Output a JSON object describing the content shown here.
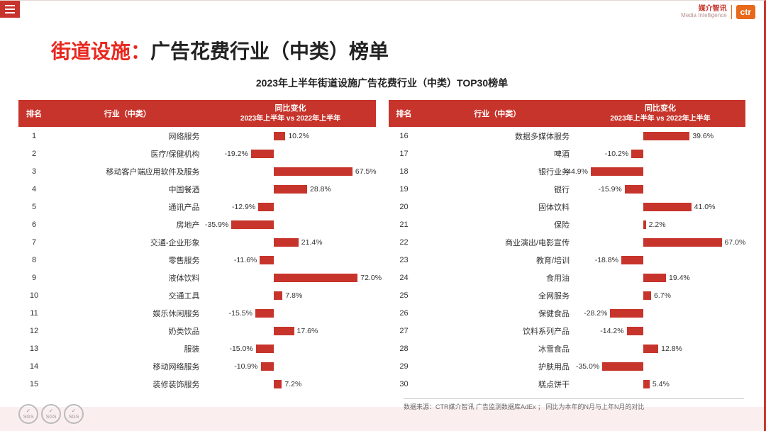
{
  "page": {
    "burger_name": "menu",
    "logo_cn": "媒介智讯",
    "logo_en": "Media Intelligence",
    "logo_box": "ctr",
    "title_prefix": "街道设施：",
    "title_rest": "广告花费行业（中类）榜单",
    "subtitle": "2023年上半年街道设施广告花费行业（中类）TOP30榜单"
  },
  "columns": {
    "rank": "排名",
    "industry": "行业（中类）",
    "change_line1": "同比变化",
    "change_line2": "2023年上半年 vs 2022年上半年"
  },
  "chart": {
    "bar_color": "#c7342b",
    "header_bg": "#c7342b",
    "max_abs": 80,
    "zero_at_pct": 40
  },
  "left": [
    {
      "rank": 1,
      "industry": "网络服务",
      "change": 10.2
    },
    {
      "rank": 2,
      "industry": "医疗/保健机构",
      "change": -19.2
    },
    {
      "rank": 3,
      "industry": "移动客户端应用软件及服务",
      "change": 67.5
    },
    {
      "rank": 4,
      "industry": "中国餐酒",
      "change": 28.8
    },
    {
      "rank": 5,
      "industry": "通讯产品",
      "change": -12.9
    },
    {
      "rank": 6,
      "industry": "房地产",
      "change": -35.9
    },
    {
      "rank": 7,
      "industry": "交通-企业形象",
      "change": 21.4
    },
    {
      "rank": 8,
      "industry": "零售服务",
      "change": -11.6
    },
    {
      "rank": 9,
      "industry": "液体饮料",
      "change": 72.0
    },
    {
      "rank": 10,
      "industry": "交通工具",
      "change": 7.8
    },
    {
      "rank": 11,
      "industry": "娱乐休闲服务",
      "change": -15.5
    },
    {
      "rank": 12,
      "industry": "奶类饮品",
      "change": 17.6
    },
    {
      "rank": 13,
      "industry": "服装",
      "change": -15.0
    },
    {
      "rank": 14,
      "industry": "移动网络服务",
      "change": -10.9
    },
    {
      "rank": 15,
      "industry": "装修装饰服务",
      "change": 7.2
    }
  ],
  "right": [
    {
      "rank": 16,
      "industry": "数据多媒体服务",
      "change": 39.6
    },
    {
      "rank": 17,
      "industry": "啤酒",
      "change": -10.2
    },
    {
      "rank": 18,
      "industry": "银行业务",
      "change": -44.9
    },
    {
      "rank": 19,
      "industry": "银行",
      "change": -15.9
    },
    {
      "rank": 20,
      "industry": "固体饮料",
      "change": 41.0
    },
    {
      "rank": 21,
      "industry": "保险",
      "change": 2.2
    },
    {
      "rank": 22,
      "industry": "商业演出/电影宣传",
      "change": 67.0
    },
    {
      "rank": 23,
      "industry": "教育/培训",
      "change": -18.8
    },
    {
      "rank": 24,
      "industry": "食用油",
      "change": 19.4
    },
    {
      "rank": 25,
      "industry": "全网服务",
      "change": 6.7
    },
    {
      "rank": 26,
      "industry": "保健食品",
      "change": -28.2
    },
    {
      "rank": 27,
      "industry": "饮料系列产品",
      "change": -14.2
    },
    {
      "rank": 28,
      "industry": "冰雪食品",
      "change": 12.8
    },
    {
      "rank": 29,
      "industry": "护肤用品",
      "change": -35.0
    },
    {
      "rank": 30,
      "industry": "糕点饼干",
      "change": 5.4
    }
  ],
  "footer": "数据来源：CTR媒介智讯 广告监测数据库AdEx ； 同比为本年的N月与上年N月的对比",
  "badge_text": "SGS"
}
